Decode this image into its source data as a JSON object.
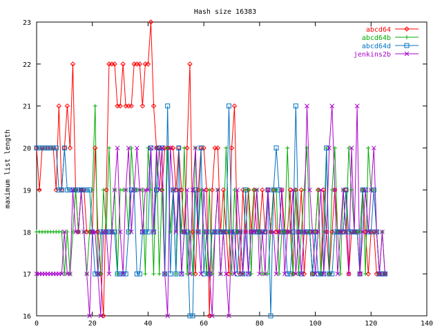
{
  "chart_data": {
    "type": "line",
    "title": "Hash size 16383",
    "xlabel": "",
    "ylabel": "maximum list length",
    "xlim": [
      0,
      140
    ],
    "ylim": [
      16,
      23
    ],
    "xticks": [
      0,
      20,
      40,
      60,
      80,
      100,
      120,
      140
    ],
    "yticks": [
      16,
      17,
      18,
      19,
      20,
      21,
      22,
      23
    ],
    "grid": false,
    "legend_position": "top-right",
    "series": [
      {
        "name": "abcd64",
        "color": "#ff0000",
        "marker": "diamond",
        "values": [
          20,
          19,
          20,
          20,
          20,
          20,
          20,
          19,
          21,
          19,
          20,
          21,
          20,
          22,
          19,
          18,
          19,
          19,
          18,
          18,
          18,
          20,
          18,
          17,
          16,
          19,
          22,
          22,
          22,
          21,
          21,
          22,
          21,
          21,
          21,
          22,
          22,
          22,
          21,
          22,
          22,
          23,
          21,
          20,
          20,
          19,
          20,
          20,
          20,
          20,
          19,
          20,
          19,
          18,
          20,
          22,
          18,
          17,
          19,
          20,
          20,
          19,
          16,
          19,
          20,
          20,
          18,
          19,
          18,
          17,
          20,
          21,
          18,
          17,
          19,
          18,
          19,
          18,
          19,
          18,
          18,
          19,
          18,
          19,
          18,
          19,
          18,
          18,
          19,
          18,
          18,
          19,
          17,
          19,
          18,
          19,
          17,
          18,
          18,
          17,
          18,
          19,
          17,
          19,
          18,
          17,
          18,
          19,
          18,
          18,
          18,
          19,
          17,
          18,
          18,
          18,
          17,
          19,
          18,
          17,
          18,
          18,
          17,
          17,
          17,
          17
        ]
      },
      {
        "name": "abcd64b",
        "color": "#00aa00",
        "marker": "plus",
        "values": [
          18,
          18,
          18,
          18,
          18,
          18,
          18,
          18,
          18,
          18,
          17,
          18,
          17,
          18,
          19,
          18,
          19,
          18,
          17,
          18,
          19,
          21,
          17,
          17,
          19,
          18,
          20,
          18,
          19,
          17,
          19,
          19,
          19,
          18,
          20,
          19,
          19,
          19,
          19,
          17,
          20,
          19,
          17,
          20,
          17,
          19,
          17,
          20,
          18,
          19,
          17,
          19,
          18,
          20,
          17,
          18,
          17,
          20,
          18,
          19,
          18,
          17,
          19,
          17,
          18,
          19,
          17,
          18,
          20,
          18,
          17,
          19,
          18,
          18,
          17,
          19,
          19,
          17,
          19,
          19,
          18,
          17,
          17,
          17,
          18,
          19,
          19,
          17,
          18,
          18,
          20,
          18,
          17,
          19,
          17,
          18,
          19,
          20,
          18,
          17,
          18,
          19,
          17,
          18,
          20,
          17,
          19,
          20,
          18,
          17,
          19,
          18,
          20,
          19,
          18,
          18,
          18,
          19,
          17,
          20,
          19,
          19,
          18,
          17,
          18,
          17
        ]
      },
      {
        "name": "abcd64d",
        "color": "#0070c0",
        "marker": "square",
        "values": [
          20,
          20,
          20,
          20,
          20,
          20,
          20,
          20,
          19,
          19,
          20,
          19,
          19,
          19,
          19,
          19,
          19,
          19,
          19,
          19,
          18,
          17,
          17,
          18,
          18,
          18,
          18,
          18,
          18,
          17,
          17,
          17,
          17,
          18,
          19,
          19,
          17,
          17,
          18,
          18,
          18,
          20,
          18,
          19,
          20,
          20,
          17,
          21,
          17,
          19,
          17,
          20,
          17,
          18,
          18,
          16,
          16,
          19,
          18,
          20,
          17,
          18,
          17,
          18,
          18,
          18,
          18,
          18,
          18,
          21,
          18,
          18,
          17,
          18,
          17,
          19,
          17,
          18,
          18,
          18,
          18,
          18,
          18,
          19,
          16,
          19,
          20,
          19,
          18,
          18,
          17,
          17,
          18,
          21,
          18,
          17,
          18,
          18,
          18,
          17,
          18,
          17,
          17,
          17,
          20,
          17,
          17,
          18,
          18,
          18,
          18,
          19,
          18,
          18,
          18,
          18,
          17,
          19,
          19,
          18,
          18,
          19,
          18,
          17,
          17,
          17
        ]
      },
      {
        "name": "jenkins2b",
        "color": "#aa00cc",
        "marker": "cross",
        "values": [
          17,
          17,
          17,
          17,
          17,
          17,
          17,
          17,
          17,
          17,
          18,
          17,
          17,
          19,
          18,
          18,
          19,
          18,
          17,
          16,
          18,
          18,
          17,
          16,
          18,
          18,
          17,
          18,
          19,
          20,
          18,
          17,
          19,
          20,
          18,
          19,
          20,
          19,
          18,
          19,
          19,
          20,
          18,
          20,
          19,
          20,
          17,
          16,
          20,
          19,
          18,
          19,
          17,
          18,
          19,
          17,
          19,
          20,
          18,
          17,
          19,
          18,
          17,
          16,
          18,
          19,
          17,
          18,
          17,
          16,
          18,
          17,
          19,
          18,
          17,
          18,
          17,
          18,
          18,
          19,
          17,
          18,
          17,
          19,
          18,
          18,
          17,
          18,
          19,
          17,
          18,
          18,
          19,
          17,
          18,
          17,
          18,
          21,
          19,
          18,
          17,
          18,
          19,
          17,
          18,
          20,
          21,
          19,
          17,
          18,
          19,
          18,
          17,
          20,
          18,
          21,
          17,
          18,
          19,
          18,
          19,
          20,
          18,
          17,
          18,
          17
        ]
      }
    ]
  }
}
